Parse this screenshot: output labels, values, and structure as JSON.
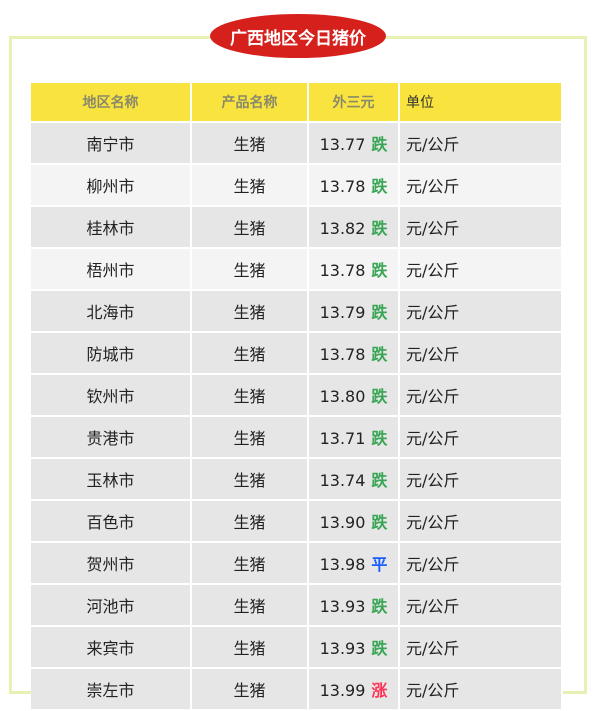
{
  "title": "广西地区今日猪价",
  "colors": {
    "down": "#3aa655",
    "flat": "#1a5cff",
    "up": "#ff3355",
    "header": "#f9e33e",
    "badge": "#d5201c"
  },
  "headers": [
    "地区名称",
    "产品名称",
    "外三元",
    "单位"
  ],
  "rows": [
    {
      "region": "南宁市",
      "product": "生猪",
      "price": "13.77",
      "trend": "跌",
      "type": "down",
      "unit": "元/公斤"
    },
    {
      "region": "柳州市",
      "product": "生猪",
      "price": "13.78",
      "trend": "跌",
      "type": "down",
      "unit": "元/公斤"
    },
    {
      "region": "桂林市",
      "product": "生猪",
      "price": "13.82",
      "trend": "跌",
      "type": "down",
      "unit": "元/公斤"
    },
    {
      "region": "梧州市",
      "product": "生猪",
      "price": "13.78",
      "trend": "跌",
      "type": "down",
      "unit": "元/公斤"
    },
    {
      "region": "北海市",
      "product": "生猪",
      "price": "13.79",
      "trend": "跌",
      "type": "down",
      "unit": "元/公斤"
    },
    {
      "region": "防城市",
      "product": "生猪",
      "price": "13.78",
      "trend": "跌",
      "type": "down",
      "unit": "元/公斤"
    },
    {
      "region": "钦州市",
      "product": "生猪",
      "price": "13.80",
      "trend": "跌",
      "type": "down",
      "unit": "元/公斤"
    },
    {
      "region": "贵港市",
      "product": "生猪",
      "price": "13.71",
      "trend": "跌",
      "type": "down",
      "unit": "元/公斤"
    },
    {
      "region": "玉林市",
      "product": "生猪",
      "price": "13.74",
      "trend": "跌",
      "type": "down",
      "unit": "元/公斤"
    },
    {
      "region": "百色市",
      "product": "生猪",
      "price": "13.90",
      "trend": "跌",
      "type": "down",
      "unit": "元/公斤"
    },
    {
      "region": "贺州市",
      "product": "生猪",
      "price": "13.98",
      "trend": "平",
      "type": "flat",
      "unit": "元/公斤"
    },
    {
      "region": "河池市",
      "product": "生猪",
      "price": "13.93",
      "trend": "跌",
      "type": "down",
      "unit": "元/公斤"
    },
    {
      "region": "来宾市",
      "product": "生猪",
      "price": "13.93",
      "trend": "跌",
      "type": "down",
      "unit": "元/公斤"
    },
    {
      "region": "崇左市",
      "product": "生猪",
      "price": "13.99",
      "trend": "涨",
      "type": "up",
      "unit": "元/公斤"
    }
  ]
}
